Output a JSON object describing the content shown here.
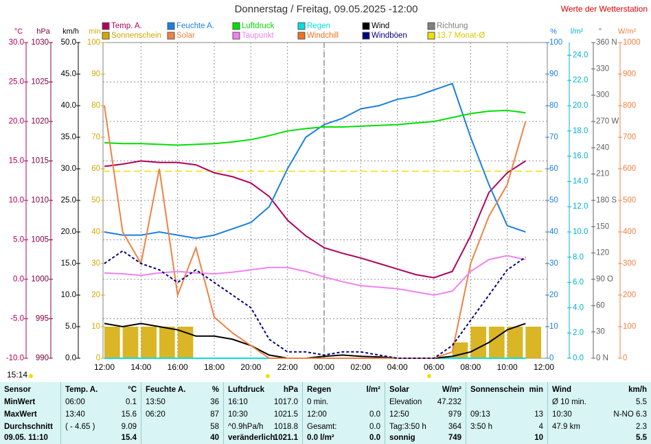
{
  "chart_data": {
    "type": "line",
    "title": "Donnerstag / Freitag, 09.05.2025  -12:00",
    "source_note": "Werte der Wetterstation",
    "annotation": "15:14",
    "categories": [
      "12:00",
      null,
      "14:00",
      null,
      "16:00",
      null,
      "18:00",
      null,
      "20:00",
      null,
      "22:00",
      null,
      "00:00",
      null,
      "02:00",
      null,
      "04:00",
      null,
      "06:00",
      null,
      "08:00",
      null,
      "10:00",
      null,
      "12:00"
    ],
    "grid": true,
    "axes": [
      {
        "label": "°C",
        "color": "#b0005a",
        "side": "left",
        "lim": [
          -10,
          30
        ],
        "ticks": [
          {
            "value": -10,
            "label": "-10.0"
          },
          {
            "value": -5,
            "label": "-5.0"
          },
          {
            "value": 0,
            "label": "0.0"
          },
          {
            "value": 5,
            "label": "5.0"
          },
          {
            "value": 10,
            "label": "10.0"
          },
          {
            "value": 15,
            "label": "15.0"
          },
          {
            "value": 20,
            "label": "20.0"
          },
          {
            "value": 25,
            "label": "25.0"
          },
          {
            "value": 30,
            "label": "30.0"
          }
        ]
      },
      {
        "label": "hPa",
        "color": "#800040",
        "side": "left",
        "lim": [
          990,
          1030
        ],
        "ticks": [
          990,
          995,
          1000,
          1005,
          1010,
          1015,
          1020,
          1025,
          1030
        ]
      },
      {
        "label": "km/h",
        "color": "#000000",
        "side": "left",
        "lim": [
          0,
          50
        ],
        "ticks": [
          {
            "value": 0,
            "label": "0.0"
          },
          {
            "value": 5,
            "label": "5.0"
          },
          {
            "value": 10,
            "label": "10.0"
          },
          {
            "value": 15,
            "label": "15.0"
          },
          {
            "value": 20,
            "label": "20.0"
          },
          {
            "value": 25,
            "label": "25.0"
          },
          {
            "value": 30,
            "label": "30.0"
          },
          {
            "value": 35,
            "label": "35.0"
          },
          {
            "value": 40,
            "label": "40.0"
          },
          {
            "value": 45,
            "label": "45.0"
          },
          {
            "value": 50,
            "label": "50.0"
          }
        ]
      },
      {
        "label": "min",
        "color": "#d4a800",
        "side": "left",
        "lim": [
          0,
          100
        ],
        "ticks": [
          0,
          10,
          20,
          30,
          40,
          50,
          60,
          70,
          80,
          90,
          100
        ]
      },
      {
        "label": "%",
        "color": "#1a7fe0",
        "side": "right",
        "lim": [
          0,
          100
        ],
        "ticks": [
          0,
          10,
          20,
          30,
          40,
          50,
          60,
          70,
          80,
          90,
          100
        ]
      },
      {
        "label": "l/m²",
        "color": "#00b0d0",
        "side": "right",
        "lim": [
          0,
          25
        ],
        "ticks": [
          {
            "value": 0,
            "label": "0.0"
          },
          {
            "value": 2,
            "label": "2.0"
          },
          {
            "value": 4,
            "label": "4.0"
          },
          {
            "value": 6,
            "label": "6.0"
          },
          {
            "value": 8,
            "label": "8.0"
          },
          {
            "value": 10,
            "label": "10.0"
          },
          {
            "value": 12,
            "label": "12.0"
          },
          {
            "value": 14,
            "label": "14.0"
          },
          {
            "value": 16,
            "label": "16.0"
          },
          {
            "value": 18,
            "label": "18.0"
          },
          {
            "value": 20,
            "label": "20.0"
          },
          {
            "value": 22,
            "label": "22.0"
          },
          {
            "value": 24,
            "label": "24.0"
          }
        ]
      },
      {
        "label": "°",
        "color": "#606060",
        "side": "right",
        "lim": [
          0,
          360
        ],
        "ticks": [
          {
            "value": 0,
            "label": "0 N"
          },
          30,
          60,
          {
            "value": 90,
            "label": "90 O"
          },
          120,
          150,
          {
            "value": 180,
            "label": "180 S"
          },
          210,
          240,
          {
            "value": 270,
            "label": "270 W"
          },
          300,
          330,
          {
            "value": 360,
            "label": "360 N"
          }
        ]
      },
      {
        "label": "W/m²",
        "color": "#f08040",
        "side": "right",
        "lim": [
          0,
          1000
        ],
        "ticks": [
          0,
          100,
          200,
          300,
          400,
          500,
          600,
          700,
          800,
          900,
          1000
        ]
      }
    ],
    "series": [
      {
        "name": "Temp. A.",
        "color": "#b0005a",
        "axis": 0,
        "style": "line",
        "values": [
          14.3,
          14.6,
          15.0,
          14.8,
          14.8,
          14.5,
          13.5,
          13.0,
          12.2,
          10.5,
          7.5,
          5.5,
          4.0,
          3.3,
          2.7,
          2.0,
          1.3,
          0.6,
          0.2,
          1.0,
          5.5,
          11.0,
          13.5,
          15.0,
          null
        ]
      },
      {
        "name": "Feuchte A.",
        "color": "#1a7fe0",
        "axis": 4,
        "style": "line",
        "values": [
          40,
          39,
          39,
          40,
          39,
          38,
          39,
          41,
          43,
          48,
          60,
          70,
          74,
          76,
          79,
          80,
          82,
          83,
          85,
          87,
          70,
          55,
          42,
          40,
          null
        ]
      },
      {
        "name": "Luftdruck",
        "color": "#00e000",
        "axis": 1,
        "style": "line",
        "values": [
          1017.3,
          1017.2,
          1017.2,
          1017.1,
          1017.0,
          1017.1,
          1017.2,
          1017.4,
          1017.7,
          1018.2,
          1018.8,
          1019.1,
          1019.3,
          1019.3,
          1019.4,
          1019.5,
          1019.6,
          1019.8,
          1020.0,
          1020.5,
          1021.0,
          1021.3,
          1021.4,
          1021.1,
          null
        ]
      },
      {
        "name": "Regen",
        "color": "#00e0e0",
        "axis": 5,
        "style": "line",
        "values": [
          0,
          0,
          0,
          0,
          0,
          0,
          0,
          0,
          0,
          0,
          0,
          0,
          0,
          0,
          0,
          0,
          0,
          0,
          0,
          0,
          0,
          0,
          0,
          0,
          null
        ]
      },
      {
        "name": "Wind",
        "color": "#000000",
        "axis": 2,
        "style": "line",
        "values": [
          5.5,
          5.0,
          5.5,
          5.0,
          4.5,
          3.5,
          3.5,
          3.0,
          2.0,
          0.5,
          0,
          0,
          0.3,
          0.5,
          0.3,
          0.2,
          0,
          0,
          0,
          0.3,
          1.0,
          2.5,
          4.5,
          5.5,
          null
        ]
      },
      {
        "name": "Richtung",
        "color": "#808080"
      },
      {
        "name": "Sonnenschein",
        "color": "#d4a800",
        "axis": 3,
        "style": "bar",
        "values": [
          10,
          10,
          10,
          10,
          10,
          0,
          0,
          0,
          0,
          0,
          0,
          0,
          0,
          0,
          0,
          0,
          0,
          0,
          0,
          5,
          10,
          10,
          10,
          10,
          null
        ]
      },
      {
        "name": "Solar",
        "color": "#f08040",
        "axis": 7,
        "style": "line",
        "values": [
          800,
          400,
          300,
          600,
          200,
          350,
          130,
          80,
          40,
          0,
          0,
          0,
          0,
          0,
          0,
          0,
          0,
          0,
          0,
          20,
          300,
          450,
          550,
          750,
          null
        ]
      },
      {
        "name": "Taupunkt",
        "color": "#f080f0",
        "axis": 0,
        "style": "line",
        "values": [
          0.8,
          0.7,
          0.5,
          0.8,
          1.0,
          0.8,
          0.7,
          0.9,
          1.2,
          1.5,
          1.5,
          1.0,
          0.3,
          -0.3,
          -0.8,
          -1.0,
          -1.2,
          -1.6,
          -2.0,
          -1.5,
          1.0,
          2.5,
          3.0,
          2.5,
          null
        ]
      },
      {
        "name": "Windchill",
        "color": "#f07020"
      },
      {
        "name": "Windböen",
        "color": "#000080",
        "axis": 2,
        "style": "dashed",
        "values": [
          15,
          17,
          15,
          14,
          12,
          14,
          12,
          10,
          8,
          3,
          1,
          1,
          0.5,
          1,
          1,
          0.5,
          0,
          0,
          0,
          2,
          6,
          10,
          14,
          16,
          null
        ]
      },
      {
        "name": "13.7 Monat-Ø",
        "color": "#f0e000",
        "axis": 0,
        "style": "hline",
        "value": 13.7
      }
    ]
  },
  "table": {
    "label_column": {
      "header": "Sensor",
      "rows": [
        "MinWert",
        "MaxWert",
        "Durchschnitt",
        "09.05. 11:10"
      ]
    },
    "sections": [
      {
        "title": "Temp. A.",
        "unit": "°C",
        "rows": [
          {
            "l": "06:00",
            "r": "0.1"
          },
          {
            "l": "13:40",
            "r": "15.6"
          },
          {
            "l": "( - 4.65 )",
            "r": "9.09"
          },
          {
            "r": "15.4"
          }
        ]
      },
      {
        "title": "Feuchte A.",
        "unit": "%",
        "rows": [
          {
            "l": "13:50",
            "r": "36"
          },
          {
            "l": "06:20",
            "r": "87"
          },
          {
            "r": "58"
          },
          {
            "r": "40"
          }
        ]
      },
      {
        "title": "Luftdruck",
        "unit": "hPa",
        "rows": [
          {
            "l": "16:10",
            "r": "1017.0"
          },
          {
            "l": "10:30",
            "r": "1021.5"
          },
          {
            "l": "^0.9hPa/h",
            "r": "1018.8"
          },
          {
            "l": "veränderlich",
            "r": "1021.1"
          }
        ]
      },
      {
        "title": "Regen",
        "unit": "l/m²",
        "rows": [
          {
            "l": "0 min."
          },
          {
            "l": "12:00",
            "r": "0.0"
          },
          {
            "l": "Gesamt:",
            "r": "0.0"
          },
          {
            "l": "0.0 l/m²",
            "r": "0.0"
          }
        ]
      },
      {
        "title": "Solar",
        "unit": "W/m²",
        "rows": [
          {
            "l": "Elevation",
            "r": "47.232"
          },
          {
            "l": "12:50",
            "r": "979"
          },
          {
            "l": "Tag:3:50 h",
            "r": "364"
          },
          {
            "l": "sonnig",
            "r": "749"
          }
        ]
      },
      {
        "title": "Sonnenschein",
        "unit": "min",
        "rows": [
          {},
          {
            "l": "09:13",
            "r": "13"
          },
          {
            "l": "3:50 h",
            "r": "4"
          },
          {
            "r": "10"
          }
        ]
      },
      {
        "title": "Wind",
        "unit": "km/h",
        "rows": [
          {
            "l": "Ø 10 min.",
            "r": "5.5"
          },
          {
            "l": "10:30",
            "r": "N-NO 6.3"
          },
          {
            "l": "47.9 km",
            "r": "2.3"
          },
          {
            "r": "5.5"
          }
        ]
      }
    ]
  }
}
